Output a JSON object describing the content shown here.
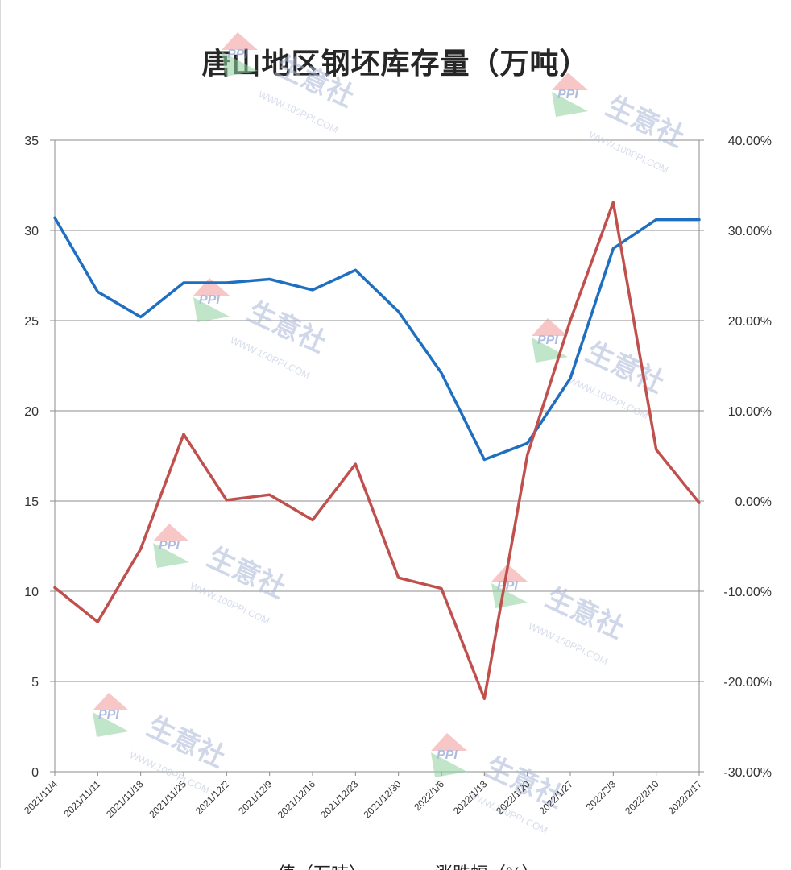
{
  "chart_data": {
    "type": "line",
    "title": "唐山地区钢坯库存量（万吨）",
    "x": [
      "2021/11/4",
      "2021/11/11",
      "2021/11/18",
      "2021/11/25",
      "2021/12/2",
      "2021/12/9",
      "2021/12/16",
      "2021/12/23",
      "2021/12/30",
      "2022/1/6",
      "2022/1/13",
      "2022/1/20",
      "2022/1/27",
      "2022/2/3",
      "2022/2/10",
      "2022/2/17"
    ],
    "series": [
      {
        "name": "值（万吨）",
        "axis": "left",
        "color": "#1f6fc1",
        "values": [
          30.7,
          26.6,
          25.2,
          27.1,
          27.1,
          27.3,
          26.7,
          27.8,
          25.5,
          22.1,
          17.3,
          18.2,
          21.8,
          29.0,
          30.6,
          30.6
        ]
      },
      {
        "name": "涨跌幅（%）",
        "axis": "right",
        "color": "#c0504d",
        "values": [
          -9.6,
          -13.4,
          -5.3,
          7.4,
          0.1,
          0.7,
          -2.1,
          4.1,
          -8.5,
          -9.7,
          -21.9,
          5.1,
          20.0,
          33.1,
          5.7,
          -0.2
        ]
      }
    ],
    "y_left": {
      "min": 0,
      "max": 35,
      "ticks": [
        "0",
        "5",
        "10",
        "15",
        "20",
        "25",
        "30",
        "35"
      ]
    },
    "y_right": {
      "min": -30,
      "max": 40,
      "ticks": [
        "-30.00%",
        "-20.00%",
        "-10.00%",
        "0.00%",
        "10.00%",
        "20.00%",
        "30.00%",
        "40.00%"
      ]
    },
    "grid": true,
    "legend_position": "bottom"
  },
  "watermark": {
    "brand": "PPI",
    "name": "生意社",
    "url": "WWW.100PPI.COM"
  }
}
